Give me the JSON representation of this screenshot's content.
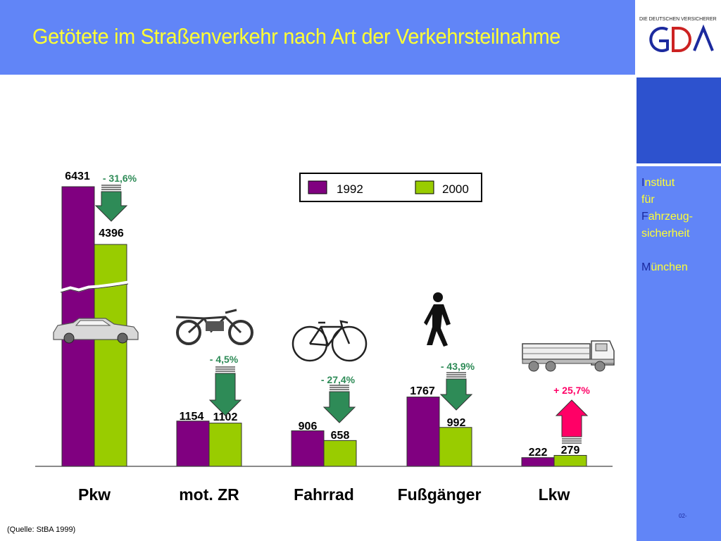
{
  "header": {
    "title": "Getötete im Straßenverkehr nach Art der Verkehrsteilnahme"
  },
  "logo": {
    "tagline": "DIE DEUTSCHEN VERSICHERER",
    "text": "GDV"
  },
  "sidebar": {
    "lines": [
      {
        "cap": "I",
        "rest": "nstitut"
      },
      {
        "cap": "",
        "rest": "für"
      },
      {
        "cap": "F",
        "rest": "ahrzeug-"
      },
      {
        "cap": "",
        "rest": "sicherheit"
      },
      {
        "cap": "",
        "rest": ""
      },
      {
        "cap": "M",
        "rest": "ünchen"
      }
    ]
  },
  "footer": {
    "source": "(Quelle: StBA 1999)",
    "page": "02-"
  },
  "colors": {
    "series1": "#800080",
    "series2": "#99cc00",
    "arrow_down": "#2e8b57",
    "arrow_up": "#ff0066",
    "header": "#6185f7"
  },
  "chart_data": {
    "type": "bar",
    "categories": [
      "Pkw",
      "mot. ZR",
      "Fahrrad",
      "Fußgänger",
      "Lkw"
    ],
    "series": [
      {
        "name": "1992",
        "values": [
          6431,
          1154,
          906,
          1767,
          222
        ]
      },
      {
        "name": "2000",
        "values": [
          4396,
          1102,
          658,
          992,
          279
        ]
      }
    ],
    "value_labels": [
      [
        "6431",
        "1154",
        "906",
        "1767",
        "222"
      ],
      [
        "4396",
        "1102",
        "658",
        "992",
        "279"
      ]
    ],
    "changes": [
      "- 31,6%",
      "- 4,5%",
      "- 27,4%",
      "- 43,9%",
      "+ 25,7%"
    ],
    "change_direction": [
      "down",
      "down",
      "down",
      "down",
      "up"
    ],
    "axis_break": true,
    "legend_position": "top-center",
    "grid": false,
    "title": "",
    "xlabel": "",
    "ylabel": ""
  }
}
